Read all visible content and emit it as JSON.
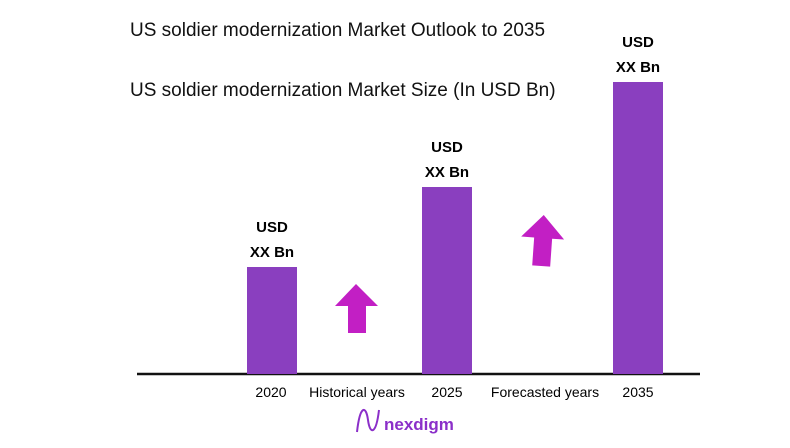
{
  "chart_data": {
    "type": "bar",
    "title": "US soldier modernization Market Outlook to 2035",
    "subtitle": "US soldier modernization Market Size (In USD Bn)",
    "categories": [
      "2020",
      "2025",
      "2035"
    ],
    "data_labels": [
      [
        "USD",
        "XX Bn"
      ],
      [
        "USD",
        "XX Bn"
      ],
      [
        "USD",
        "XX Bn"
      ]
    ],
    "period_labels": [
      "Historical years",
      "Forecasted years"
    ],
    "bar_color": "#8a3fbf",
    "arrow_color": "#c21fc4",
    "grid": false
  },
  "logo": {
    "text": "nexdigm",
    "color": "#8b2fc9"
  }
}
